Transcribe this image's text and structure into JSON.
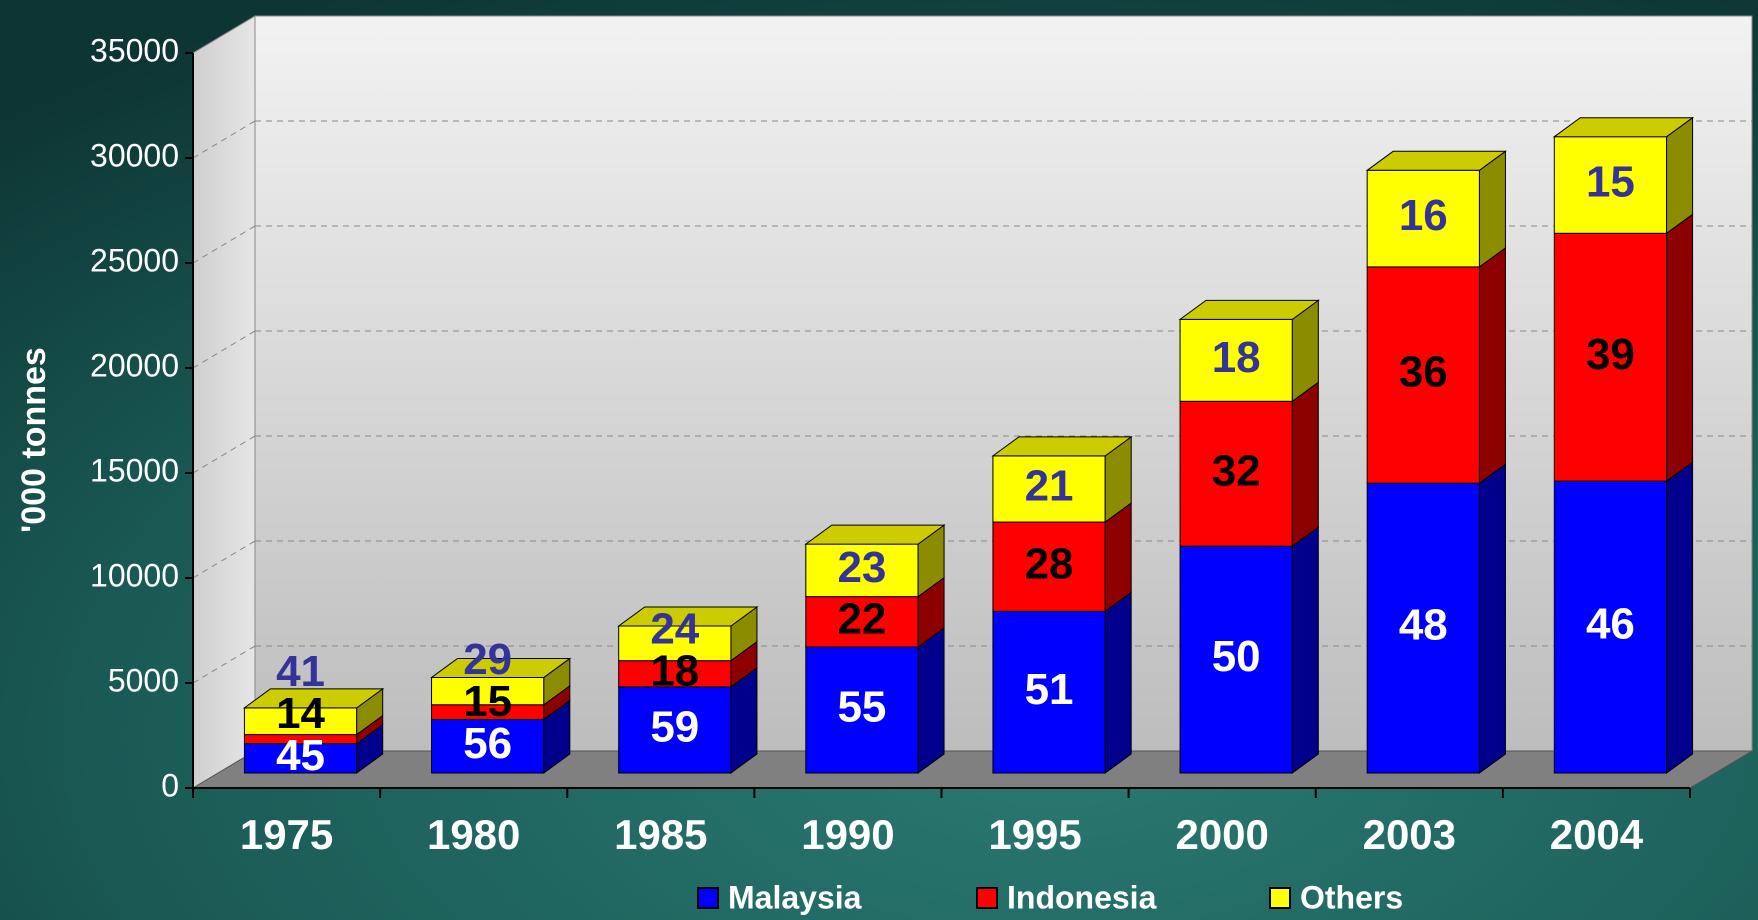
{
  "chart_data": {
    "type": "bar3d_stacked",
    "y_label": "'000 tonnes",
    "categories": [
      "1975",
      "1980",
      "1985",
      "1990",
      "1995",
      "2000",
      "2003",
      "2004"
    ],
    "series": [
      {
        "name": "Malaysia",
        "color": "#0000ff",
        "values": [
          1400,
          2550,
          4100,
          6000,
          7700,
          10800,
          13800,
          13900
        ],
        "shares": [
          45,
          56,
          59,
          55,
          51,
          50,
          48,
          46
        ],
        "label_color": "#ffffff"
      },
      {
        "name": "Indonesia",
        "color": "#ff0000",
        "values": [
          430,
          700,
          1250,
          2400,
          4250,
          6900,
          10300,
          11800
        ],
        "shares": [
          14,
          15,
          18,
          22,
          28,
          32,
          36,
          39
        ],
        "label_color": "#000000"
      },
      {
        "name": "Others",
        "color": "#ffff00",
        "values": [
          1270,
          1300,
          1650,
          2500,
          3150,
          3900,
          4600,
          4600
        ],
        "shares": [
          41,
          29,
          24,
          23,
          21,
          18,
          16,
          15
        ],
        "label_color": "#333399"
      }
    ],
    "ylim": [
      0,
      35000
    ],
    "yticks": [
      0,
      5000,
      10000,
      15000,
      20000,
      25000,
      30000,
      35000
    ],
    "grid": true,
    "legend": "bottom"
  }
}
